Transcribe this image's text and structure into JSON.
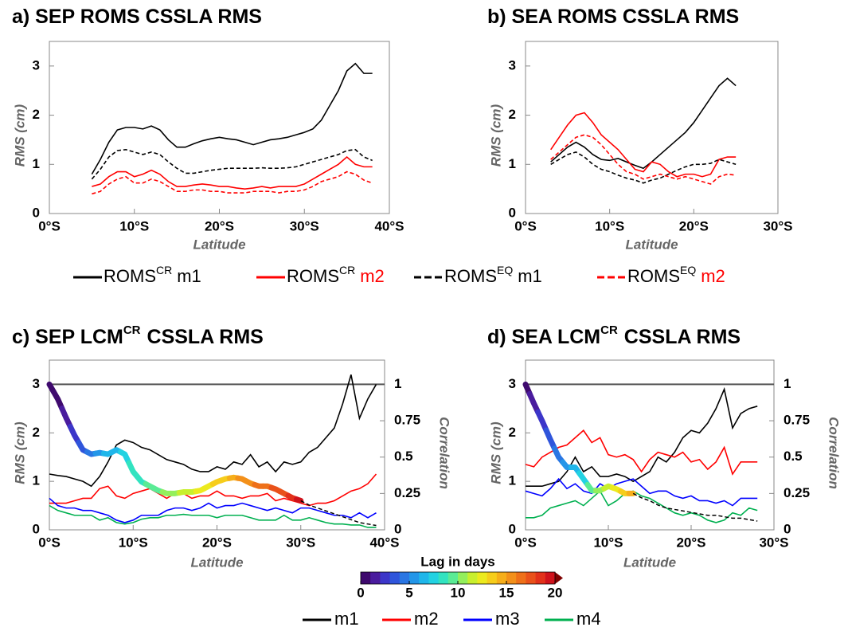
{
  "chart_data": [
    {
      "type": "line",
      "title": "a) SEP ROMS CSSLA RMS",
      "xlabel": "Latitude",
      "ylabel": "RMS (cm)",
      "xlim": [
        0,
        40
      ],
      "xticks": [
        {
          "value": 0,
          "label": "0°S"
        },
        {
          "value": 10,
          "label": "10°S"
        },
        {
          "value": 20,
          "label": "20°S"
        },
        {
          "value": 30,
          "label": "30°S"
        },
        {
          "value": 40,
          "label": "40°S"
        }
      ],
      "ylim": [
        0,
        3.5
      ],
      "yticks": [
        0,
        1,
        2,
        3
      ],
      "x": [
        5,
        6,
        7,
        8,
        9,
        10,
        11,
        12,
        13,
        14,
        15,
        16,
        17,
        18,
        19,
        20,
        21,
        22,
        23,
        24,
        25,
        26,
        27,
        28,
        29,
        30,
        31,
        32,
        33,
        34,
        35,
        36,
        37,
        38
      ],
      "series": [
        {
          "name": "ROMS",
          "name_sup": "CR",
          "name_suffix": "m1",
          "color": "#000000",
          "dash": false,
          "values": [
            0.8,
            1.1,
            1.45,
            1.7,
            1.75,
            1.75,
            1.72,
            1.78,
            1.7,
            1.5,
            1.35,
            1.35,
            1.42,
            1.48,
            1.52,
            1.55,
            1.52,
            1.5,
            1.45,
            1.4,
            1.45,
            1.5,
            1.52,
            1.55,
            1.6,
            1.65,
            1.72,
            1.9,
            2.2,
            2.5,
            2.9,
            3.05,
            2.85,
            2.85
          ]
        },
        {
          "name": "ROMS",
          "name_sup": "CR",
          "name_suffix": "m2",
          "color": "#ff0000",
          "dash": false,
          "values": [
            0.55,
            0.6,
            0.75,
            0.85,
            0.85,
            0.75,
            0.8,
            0.88,
            0.8,
            0.65,
            0.55,
            0.55,
            0.58,
            0.6,
            0.58,
            0.55,
            0.55,
            0.52,
            0.5,
            0.52,
            0.55,
            0.52,
            0.55,
            0.55,
            0.55,
            0.6,
            0.7,
            0.8,
            0.9,
            1.0,
            1.15,
            1.0,
            0.95,
            0.95
          ]
        },
        {
          "name": "ROMS",
          "name_sup": "EQ",
          "name_suffix": "m1",
          "color": "#000000",
          "dash": true,
          "values": [
            0.7,
            0.9,
            1.15,
            1.28,
            1.3,
            1.25,
            1.2,
            1.25,
            1.2,
            1.05,
            0.92,
            0.82,
            0.82,
            0.85,
            0.88,
            0.9,
            0.92,
            0.92,
            0.92,
            0.92,
            0.93,
            0.92,
            0.92,
            0.93,
            0.95,
            1.0,
            1.05,
            1.1,
            1.15,
            1.2,
            1.28,
            1.3,
            1.15,
            1.08
          ]
        },
        {
          "name": "ROMS",
          "name_sup": "EQ",
          "name_suffix": "m2",
          "color": "#ff0000",
          "dash": true,
          "values": [
            0.4,
            0.45,
            0.6,
            0.7,
            0.75,
            0.62,
            0.62,
            0.7,
            0.65,
            0.55,
            0.45,
            0.45,
            0.48,
            0.48,
            0.45,
            0.45,
            0.42,
            0.42,
            0.42,
            0.45,
            0.45,
            0.45,
            0.42,
            0.45,
            0.45,
            0.48,
            0.55,
            0.65,
            0.7,
            0.75,
            0.85,
            0.8,
            0.68,
            0.62
          ]
        }
      ]
    },
    {
      "type": "line",
      "title": "b) SEA ROMS CSSLA RMS",
      "xlabel": "Latitude",
      "ylabel": "RMS (cm)",
      "xlim": [
        0,
        30
      ],
      "xticks": [
        {
          "value": 0,
          "label": "0°S"
        },
        {
          "value": 10,
          "label": "10°S"
        },
        {
          "value": 20,
          "label": "20°S"
        },
        {
          "value": 30,
          "label": "30°S"
        }
      ],
      "ylim": [
        0,
        3.5
      ],
      "yticks": [
        0,
        1,
        2,
        3
      ],
      "x": [
        3,
        4,
        5,
        6,
        7,
        8,
        9,
        10,
        11,
        12,
        13,
        14,
        15,
        16,
        17,
        18,
        19,
        20,
        21,
        22,
        23,
        24,
        25
      ],
      "series": [
        {
          "color": "#000000",
          "dash": false,
          "values": [
            1.05,
            1.2,
            1.35,
            1.45,
            1.35,
            1.2,
            1.1,
            1.08,
            1.12,
            1.05,
            0.98,
            0.92,
            1.05,
            1.2,
            1.35,
            1.5,
            1.65,
            1.85,
            2.1,
            2.35,
            2.6,
            2.75,
            2.6
          ]
        },
        {
          "color": "#ff0000",
          "dash": false,
          "values": [
            1.3,
            1.55,
            1.8,
            2.0,
            2.05,
            1.85,
            1.6,
            1.45,
            1.3,
            1.1,
            0.9,
            0.85,
            1.05,
            1.0,
            0.85,
            0.75,
            0.8,
            0.8,
            0.75,
            0.8,
            1.1,
            1.15,
            1.15
          ]
        },
        {
          "color": "#000000",
          "dash": true,
          "values": [
            1.0,
            1.1,
            1.2,
            1.25,
            1.15,
            1.0,
            0.9,
            0.85,
            0.78,
            0.72,
            0.68,
            0.62,
            0.68,
            0.72,
            0.8,
            0.88,
            0.95,
            1.0,
            1.0,
            1.02,
            1.1,
            1.05,
            1.0
          ]
        },
        {
          "color": "#ff0000",
          "dash": true,
          "values": [
            1.1,
            1.25,
            1.4,
            1.55,
            1.6,
            1.55,
            1.4,
            1.2,
            1.0,
            0.85,
            0.8,
            0.7,
            0.75,
            0.8,
            0.75,
            0.7,
            0.75,
            0.7,
            0.65,
            0.6,
            0.75,
            0.8,
            0.78
          ]
        }
      ]
    },
    {
      "type": "line",
      "title": "c) SEP LCM",
      "title_sup": "CR",
      "title_end": "CSSLA RMS",
      "xlabel": "Latitude",
      "ylabel": "RMS (cm)",
      "y2label": "Correlation",
      "xlim": [
        0,
        40
      ],
      "xticks": [
        {
          "value": 0,
          "label": "0°S"
        },
        {
          "value": 10,
          "label": "10°S"
        },
        {
          "value": 20,
          "label": "20°S"
        },
        {
          "value": 30,
          "label": "30°S"
        },
        {
          "value": 40,
          "label": "40°S"
        }
      ],
      "ylim": [
        0,
        3.5
      ],
      "yticks": [
        0,
        1,
        2,
        3
      ],
      "y2lim": [
        0,
        1.1667
      ],
      "y2ticks": [
        0,
        0.25,
        0.5,
        0.75,
        1
      ],
      "hline": 1,
      "x": [
        0,
        1,
        2,
        3,
        4,
        5,
        6,
        7,
        8,
        9,
        10,
        11,
        12,
        13,
        14,
        15,
        16,
        17,
        18,
        19,
        20,
        21,
        22,
        23,
        24,
        25,
        26,
        27,
        28,
        29,
        30,
        31,
        32,
        33,
        34,
        35,
        36,
        37,
        38,
        39
      ],
      "series": [
        {
          "name": "m1",
          "color": "#000000",
          "values": [
            1.15,
            1.12,
            1.1,
            1.05,
            1.0,
            0.9,
            1.1,
            1.4,
            1.75,
            1.85,
            1.8,
            1.7,
            1.65,
            1.55,
            1.45,
            1.4,
            1.35,
            1.25,
            1.2,
            1.2,
            1.3,
            1.25,
            1.4,
            1.35,
            1.55,
            1.3,
            1.4,
            1.2,
            1.4,
            1.35,
            1.4,
            1.6,
            1.7,
            1.9,
            2.1,
            2.6,
            3.2,
            2.3,
            2.7,
            3.0
          ]
        },
        {
          "name": "m2",
          "color": "#ff0000",
          "values": [
            0.55,
            0.55,
            0.55,
            0.6,
            0.65,
            0.65,
            0.85,
            0.9,
            0.7,
            0.65,
            0.75,
            0.8,
            0.85,
            0.75,
            0.65,
            0.75,
            0.75,
            0.65,
            0.7,
            0.7,
            0.8,
            0.7,
            0.7,
            0.65,
            0.7,
            0.7,
            0.75,
            0.6,
            0.65,
            0.6,
            0.55,
            0.5,
            0.55,
            0.55,
            0.6,
            0.7,
            0.8,
            0.85,
            0.95,
            1.15
          ]
        },
        {
          "name": "m3",
          "color": "#0000ff",
          "values": [
            0.65,
            0.5,
            0.45,
            0.45,
            0.4,
            0.4,
            0.35,
            0.3,
            0.2,
            0.15,
            0.2,
            0.3,
            0.3,
            0.3,
            0.4,
            0.45,
            0.45,
            0.4,
            0.45,
            0.55,
            0.45,
            0.5,
            0.5,
            0.55,
            0.5,
            0.45,
            0.4,
            0.45,
            0.4,
            0.35,
            0.45,
            0.45,
            0.4,
            0.35,
            0.3,
            0.3,
            0.25,
            0.35,
            0.25,
            0.35
          ]
        },
        {
          "name": "m4",
          "color": "#00b050",
          "values": [
            0.5,
            0.4,
            0.35,
            0.3,
            0.3,
            0.3,
            0.2,
            0.25,
            0.15,
            0.12,
            0.15,
            0.22,
            0.25,
            0.25,
            0.3,
            0.3,
            0.32,
            0.3,
            0.3,
            0.3,
            0.25,
            0.3,
            0.3,
            0.3,
            0.25,
            0.2,
            0.2,
            0.2,
            0.3,
            0.2,
            0.2,
            0.25,
            0.2,
            0.15,
            0.12,
            0.12,
            0.1,
            0.1,
            0.05,
            0.05
          ]
        },
        {
          "axis": "y2",
          "color": "#000000",
          "values": [
            1.0,
            0.9,
            0.77,
            0.65,
            0.55,
            0.52,
            0.53,
            0.52,
            0.55,
            0.52,
            0.4,
            0.33,
            0.3,
            0.27,
            0.25,
            0.25,
            0.26,
            0.26,
            0.27,
            0.3,
            0.33,
            0.35,
            0.36,
            0.35,
            0.32,
            0.3,
            0.3,
            0.28,
            0.25,
            0.22,
            0.2,
            0.17,
            0.15,
            0.13,
            0.11,
            0.09,
            0.07,
            0.05,
            0.04,
            0.03
          ],
          "lag": [
            0,
            0.5,
            1,
            2,
            3,
            4,
            5,
            6,
            6.5,
            7,
            8,
            8.5,
            9,
            9.5,
            10,
            10.5,
            11,
            11.5,
            12,
            12.5,
            13,
            13.5,
            14,
            15,
            15.5,
            16,
            16.5,
            17,
            17.5,
            18,
            19,
            null,
            null,
            null,
            null,
            null,
            null,
            null,
            null,
            null
          ]
        }
      ]
    },
    {
      "type": "line",
      "title": "d) SEA LCM",
      "title_sup": "CR",
      "title_end": "CSSLA RMS",
      "xlabel": "Latitude",
      "ylabel": "RMS (cm)",
      "y2label": "Correlation",
      "xlim": [
        0,
        30
      ],
      "xticks": [
        {
          "value": 0,
          "label": "0°S"
        },
        {
          "value": 10,
          "label": "10°S"
        },
        {
          "value": 20,
          "label": "20°S"
        },
        {
          "value": 30,
          "label": "30°S"
        }
      ],
      "ylim": [
        0,
        3.5
      ],
      "yticks": [
        0,
        1,
        2,
        3
      ],
      "y2lim": [
        0,
        1.1667
      ],
      "y2ticks": [
        0,
        0.25,
        0.5,
        0.75,
        1
      ],
      "hline": 1,
      "x": [
        0,
        1,
        2,
        3,
        4,
        5,
        6,
        7,
        8,
        9,
        10,
        11,
        12,
        13,
        14,
        15,
        16,
        17,
        18,
        19,
        20,
        21,
        22,
        23,
        24,
        25,
        26,
        27,
        28
      ],
      "series": [
        {
          "color": "#000000",
          "values": [
            0.9,
            0.9,
            0.9,
            0.95,
            1.0,
            1.2,
            1.5,
            1.2,
            1.3,
            1.1,
            1.1,
            1.15,
            1.1,
            1.0,
            1.1,
            1.2,
            1.5,
            1.4,
            1.6,
            1.9,
            2.05,
            2.0,
            2.2,
            2.5,
            2.9,
            2.1,
            2.4,
            2.5,
            2.55
          ]
        },
        {
          "color": "#ff0000",
          "values": [
            1.35,
            1.3,
            1.5,
            1.6,
            1.7,
            1.75,
            1.9,
            2.05,
            1.8,
            1.9,
            1.55,
            1.5,
            1.55,
            1.45,
            1.2,
            1.45,
            1.6,
            1.55,
            1.5,
            1.6,
            1.4,
            1.45,
            1.25,
            1.4,
            1.7,
            1.15,
            1.4,
            1.4,
            1.4
          ]
        },
        {
          "color": "#0000ff",
          "values": [
            0.8,
            0.75,
            0.7,
            0.85,
            1.05,
            0.85,
            0.95,
            0.8,
            0.75,
            0.95,
            0.85,
            0.95,
            1.0,
            1.05,
            0.9,
            0.75,
            0.8,
            0.8,
            0.7,
            0.65,
            0.7,
            0.6,
            0.6,
            0.55,
            0.6,
            0.5,
            0.65,
            0.65,
            0.65
          ]
        },
        {
          "color": "#00b050",
          "values": [
            0.25,
            0.25,
            0.3,
            0.45,
            0.5,
            0.55,
            0.6,
            0.5,
            0.65,
            0.8,
            0.5,
            0.6,
            0.75,
            0.8,
            0.7,
            0.65,
            0.55,
            0.45,
            0.35,
            0.3,
            0.35,
            0.3,
            0.2,
            0.15,
            0.2,
            0.35,
            0.3,
            0.45,
            0.4
          ]
        },
        {
          "axis": "y2",
          "color": "#000000",
          "values": [
            1.0,
            0.87,
            0.75,
            0.62,
            0.5,
            0.43,
            0.43,
            0.35,
            0.27,
            0.27,
            0.3,
            0.28,
            0.25,
            0.25,
            0.22,
            0.2,
            0.17,
            0.15,
            0.14,
            0.13,
            0.12,
            0.11,
            0.1,
            0.1,
            0.09,
            0.08,
            0.08,
            0.07,
            0.06
          ],
          "lag": [
            0,
            1,
            2,
            3,
            4,
            5,
            6,
            7,
            9,
            10,
            11,
            12,
            13.5,
            14,
            null,
            null,
            null,
            null,
            null,
            null,
            null,
            null,
            null,
            null,
            null,
            null,
            null,
            null,
            null
          ]
        }
      ]
    }
  ],
  "colorbar": {
    "label": "Lag in days",
    "lim": [
      0,
      20
    ],
    "ticks": [
      0,
      5,
      10,
      15,
      20
    ],
    "colors": [
      "#3f0a6e",
      "#4a1c9e",
      "#3c36c9",
      "#2f55db",
      "#2a76e3",
      "#2396e8",
      "#1fb6ea",
      "#22d2e2",
      "#32e3c0",
      "#5aeb95",
      "#93ef5c",
      "#c8ef2e",
      "#ecea1e",
      "#f6cd1b",
      "#f6ae1a",
      "#f3901a",
      "#ee7019",
      "#e9511a",
      "#e2311a",
      "#cf121b"
    ],
    "extend_color": "#7f0000"
  }
}
